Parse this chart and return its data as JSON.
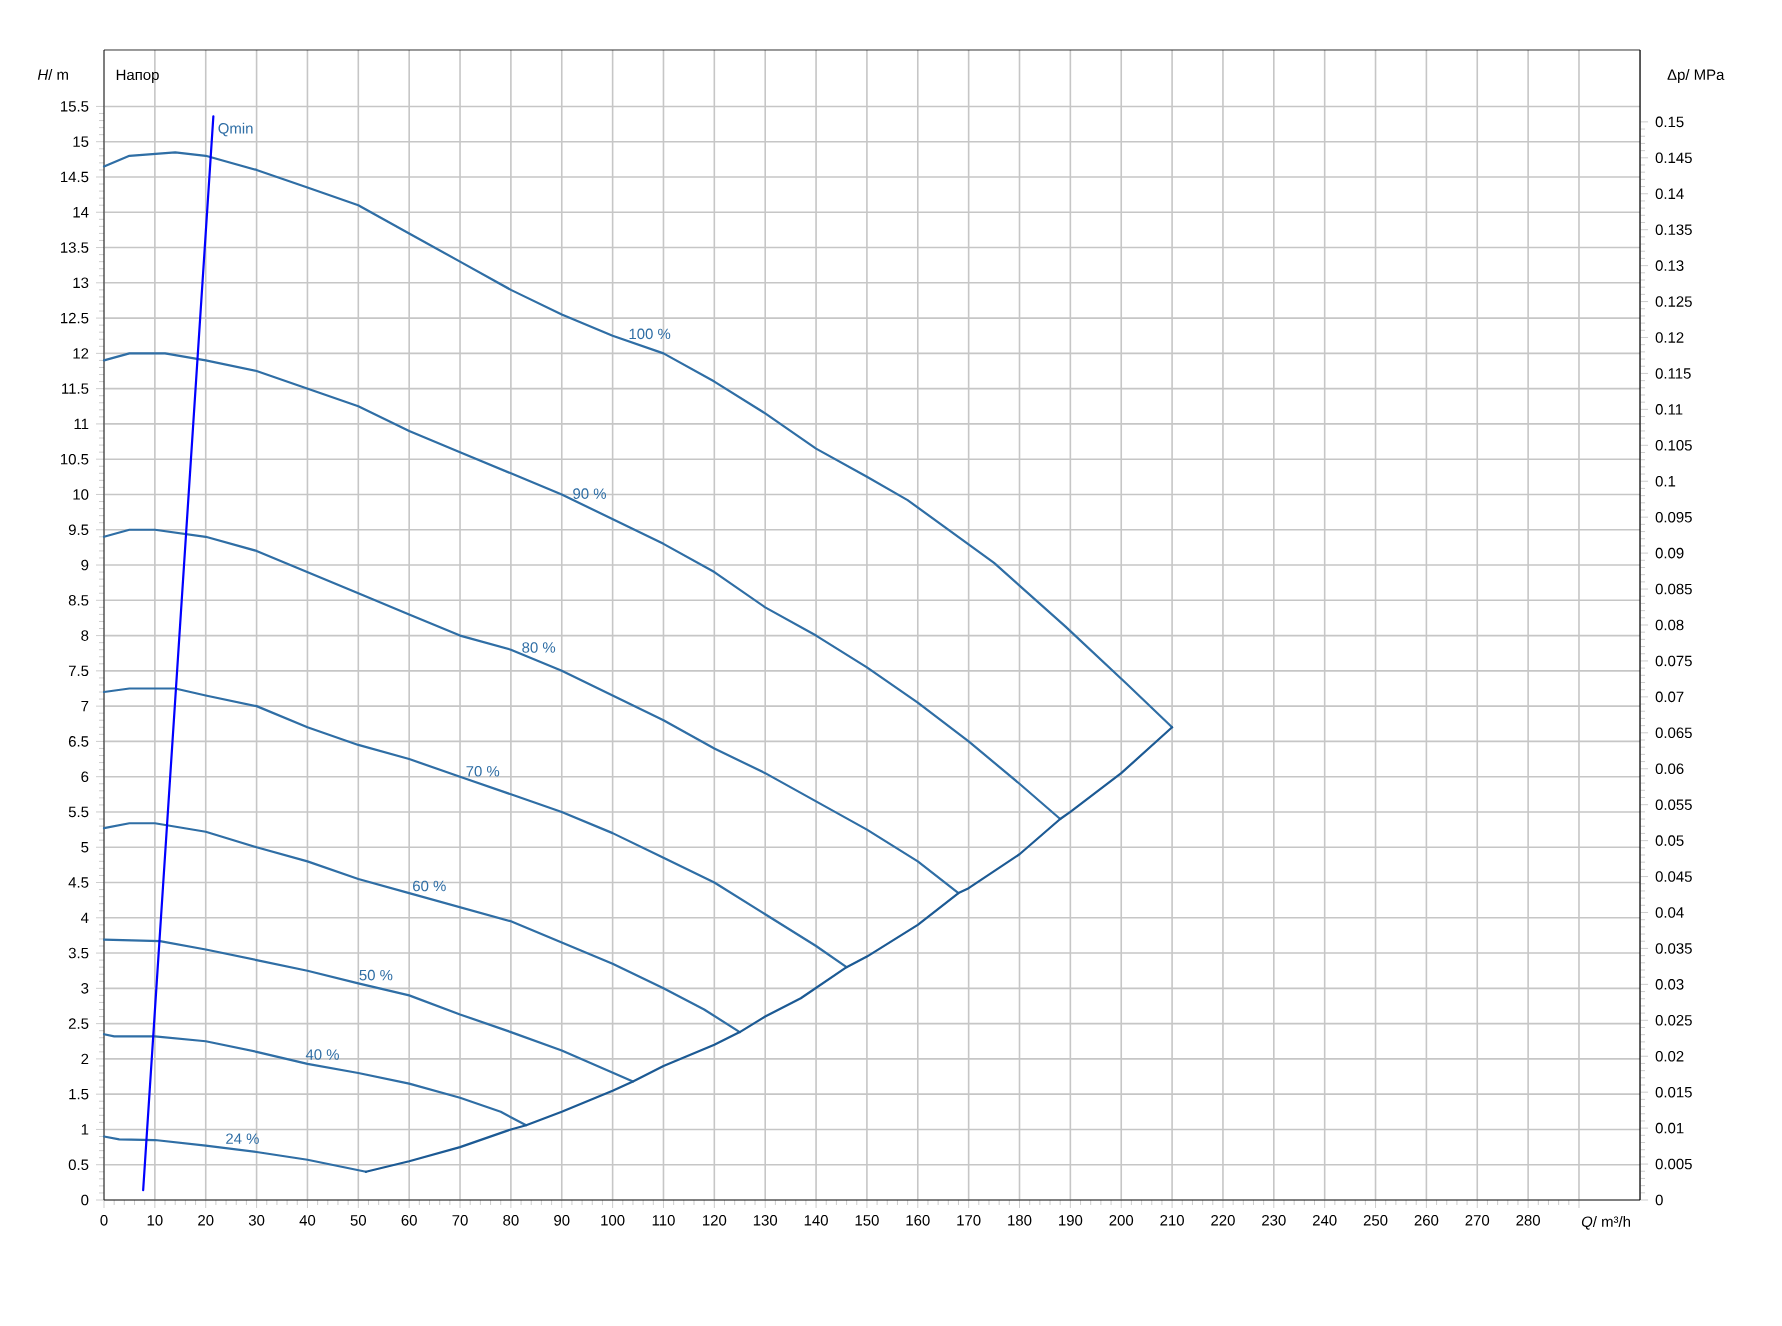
{
  "chart_data": {
    "type": "line",
    "title": "Напор",
    "xlabel": "*Q*/ m³/h",
    "ylabel": "*H*/ m",
    "y2label": "Δp/ MPa",
    "xlim": [
      0,
      302
    ],
    "ylim": [
      0,
      16.3
    ],
    "y2lim": [
      0,
      0.16
    ],
    "xticks": [
      0,
      10,
      20,
      30,
      40,
      50,
      60,
      70,
      80,
      90,
      100,
      110,
      120,
      130,
      140,
      150,
      160,
      170,
      180,
      190,
      200,
      210,
      220,
      230,
      240,
      250,
      260,
      270,
      280,
      {
        "value": 290,
        "label": null
      }
    ],
    "yticks": [
      0,
      0.5,
      1,
      1.5,
      2,
      2.5,
      3,
      3.5,
      4,
      4.5,
      5,
      5.5,
      6,
      6.5,
      7,
      7.5,
      8,
      8.5,
      9,
      9.5,
      10,
      10.5,
      11,
      11.5,
      12,
      12.5,
      13,
      13.5,
      14,
      14.5,
      15,
      15.5
    ],
    "y2ticks": [
      0,
      0.005,
      0.01,
      0.015,
      0.02,
      0.025,
      0.03,
      0.035,
      0.04,
      0.045,
      0.05,
      0.055,
      0.06,
      0.065,
      0.07,
      0.075,
      0.08,
      0.085,
      0.09,
      0.095,
      0.1,
      0.105,
      0.11,
      0.115,
      0.12,
      0.125,
      0.13,
      0.135,
      0.14,
      0.145,
      0.15
    ],
    "grid": true,
    "marker": "none",
    "series": [
      {
        "name": "100 %",
        "color": "#2f6ea5",
        "x": [
          0,
          5,
          14,
          20,
          30,
          40,
          50,
          60,
          70,
          80,
          90,
          100,
          110,
          120,
          130,
          140,
          150,
          158,
          175,
          189,
          201,
          210
        ],
        "values": [
          14.65,
          14.8,
          14.85,
          14.8,
          14.6,
          14.35,
          14.1,
          13.7,
          13.3,
          12.9,
          12.55,
          12.25,
          12.0,
          11.6,
          11.15,
          10.65,
          10.25,
          9.92,
          9.03,
          8.13,
          7.32,
          6.7
        ]
      },
      {
        "name": "90 %",
        "color": "#2f6ea5",
        "x": [
          0,
          5,
          12,
          20,
          30,
          40,
          50,
          60,
          70,
          80,
          90,
          100,
          110,
          120,
          130,
          140,
          150,
          160,
          170,
          175,
          180,
          188
        ],
        "values": [
          11.9,
          12.0,
          12.0,
          11.9,
          11.75,
          11.5,
          11.25,
          10.9,
          10.6,
          10.3,
          10.0,
          9.65,
          9.3,
          8.9,
          8.4,
          8.0,
          7.55,
          7.05,
          6.5,
          6.2,
          5.9,
          5.4
        ]
      },
      {
        "name": "80 %",
        "color": "#2f6ea5",
        "x": [
          0,
          5,
          10,
          20,
          30,
          40,
          50,
          60,
          70,
          80,
          90,
          100,
          110,
          120,
          130,
          140,
          150,
          160,
          168
        ],
        "values": [
          9.4,
          9.5,
          9.5,
          9.4,
          9.2,
          8.9,
          8.6,
          8.3,
          8.0,
          7.8,
          7.5,
          7.15,
          6.8,
          6.4,
          6.05,
          5.65,
          5.25,
          4.8,
          4.35
        ]
      },
      {
        "name": "70 %",
        "color": "#2f6ea5",
        "x": [
          0,
          5,
          14,
          20,
          30,
          40,
          50,
          60,
          70,
          80,
          90,
          100,
          110,
          120,
          130,
          140,
          146
        ],
        "values": [
          7.2,
          7.25,
          7.25,
          7.15,
          7.0,
          6.7,
          6.45,
          6.25,
          6.0,
          5.75,
          5.5,
          5.2,
          4.85,
          4.5,
          4.05,
          3.6,
          3.3
        ]
      },
      {
        "name": "60 %",
        "color": "#2f6ea5",
        "x": [
          0,
          5,
          10,
          20,
          30,
          40,
          50,
          60,
          70,
          80,
          90,
          100,
          110,
          118,
          125
        ],
        "values": [
          5.27,
          5.34,
          5.34,
          5.22,
          5.0,
          4.8,
          4.55,
          4.35,
          4.15,
          3.95,
          3.65,
          3.35,
          3.0,
          2.7,
          2.38
        ]
      },
      {
        "name": "50 %",
        "color": "#2f6ea5",
        "x": [
          0,
          11,
          20,
          30,
          40,
          50,
          60,
          70,
          80,
          90,
          97,
          104
        ],
        "values": [
          3.69,
          3.67,
          3.55,
          3.4,
          3.25,
          3.07,
          2.9,
          2.63,
          2.38,
          2.12,
          1.9,
          1.68
        ]
      },
      {
        "name": "40 %",
        "color": "#2f6ea5",
        "x": [
          0,
          2,
          10,
          20,
          30,
          40,
          50,
          60,
          70,
          78,
          83
        ],
        "values": [
          2.35,
          2.32,
          2.32,
          2.25,
          2.1,
          1.93,
          1.8,
          1.65,
          1.45,
          1.25,
          1.06
        ]
      },
      {
        "name": "24 %",
        "color": "#2f6ea5",
        "x": [
          0,
          3,
          10,
          20,
          30,
          40,
          51.5
        ],
        "values": [
          0.9,
          0.86,
          0.85,
          0.77,
          0.68,
          0.57,
          0.4
        ]
      },
      {
        "color": "#1c5a94",
        "x": [
          51.5,
          60,
          70,
          80,
          83,
          90,
          100,
          104,
          110,
          120,
          125,
          130,
          137,
          146,
          150,
          160,
          168,
          170,
          180,
          188,
          190,
          200,
          210
        ],
        "values": [
          0.4,
          0.55,
          0.75,
          1.0,
          1.06,
          1.25,
          1.55,
          1.68,
          1.9,
          2.2,
          2.38,
          2.6,
          2.86,
          3.3,
          3.45,
          3.9,
          4.35,
          4.42,
          4.9,
          5.4,
          5.5,
          6.05,
          6.7
        ]
      },
      {
        "color": "#0000ff",
        "x": [
          7.7,
          21.5
        ],
        "values": [
          0.14,
          15.36
        ]
      }
    ],
    "annotations": [
      {
        "text": "Qmin",
        "x": 21.5,
        "y": 15.36
      }
    ]
  }
}
